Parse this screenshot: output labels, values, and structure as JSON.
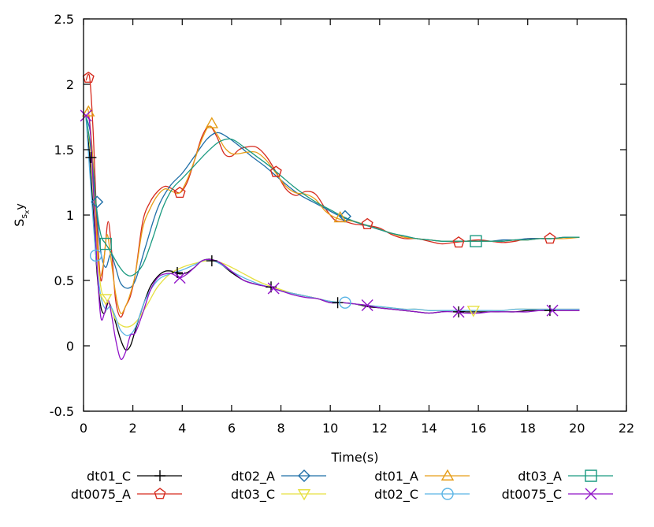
{
  "chart_data": {
    "type": "line",
    "title": "",
    "xlabel": "Time(s)",
    "ylabel": {
      "main": "S",
      "sub": "s",
      "subsub": "x",
      "tail": "y"
    },
    "xlim": [
      0,
      22
    ],
    "ylim": [
      -0.5,
      2.5
    ],
    "xticks": [
      0,
      2,
      4,
      6,
      8,
      10,
      12,
      14,
      16,
      18,
      20,
      22
    ],
    "yticks": [
      -0.5,
      0,
      0.5,
      1,
      1.5,
      2,
      2.5
    ],
    "grid": false,
    "legend_position": "bottom",
    "series": [
      {
        "name": "dt01_C",
        "color": "#000000",
        "marker": "plus",
        "x": [
          0.1,
          0.25,
          0.4,
          0.55,
          0.7,
          0.85,
          1.0,
          1.15,
          1.3,
          1.5,
          1.7,
          1.9,
          2.1,
          2.4,
          2.7,
          3.0,
          3.3,
          3.6,
          3.9,
          4.2,
          4.5,
          4.8,
          5.2,
          5.6,
          6.0,
          6.5,
          7.0,
          7.5,
          8.0,
          8.5,
          9.0,
          9.5,
          10.0,
          10.5,
          11.0,
          11.5,
          12.0,
          12.5,
          13.0,
          13.5,
          14.0,
          14.5,
          15.0,
          15.5,
          16.0,
          16.5,
          17.0,
          17.5,
          18.0,
          18.5,
          19.0,
          19.5,
          20.1
        ],
        "y": [
          1.75,
          1.44,
          1.0,
          0.55,
          0.3,
          0.25,
          0.33,
          0.28,
          0.18,
          0.05,
          -0.03,
          0.0,
          0.12,
          0.3,
          0.45,
          0.53,
          0.57,
          0.57,
          0.55,
          0.56,
          0.6,
          0.65,
          0.66,
          0.62,
          0.56,
          0.5,
          0.47,
          0.45,
          0.42,
          0.4,
          0.38,
          0.36,
          0.33,
          0.33,
          0.32,
          0.3,
          0.29,
          0.28,
          0.27,
          0.26,
          0.25,
          0.26,
          0.27,
          0.26,
          0.26,
          0.26,
          0.26,
          0.26,
          0.27,
          0.27,
          0.27,
          0.27,
          0.27
        ],
        "marker_x": [
          0.3,
          3.8,
          5.2,
          7.6,
          10.3,
          15.2,
          18.9
        ],
        "marker_y": [
          1.44,
          0.56,
          0.65,
          0.45,
          0.33,
          0.26,
          0.27
        ]
      },
      {
        "name": "dt0075_A",
        "color": "#d62b1e",
        "marker": "pentagon",
        "x": [
          0.1,
          0.25,
          0.4,
          0.55,
          0.7,
          0.85,
          1.0,
          1.15,
          1.3,
          1.5,
          1.7,
          1.9,
          2.1,
          2.4,
          2.7,
          3.0,
          3.3,
          3.6,
          3.9,
          4.2,
          4.5,
          4.8,
          5.1,
          5.4,
          5.7,
          6.0,
          6.3,
          6.6,
          7.0,
          7.4,
          7.8,
          8.2,
          8.6,
          9.0,
          9.4,
          9.8,
          10.2,
          10.6,
          11.0,
          11.5,
          12.0,
          12.5,
          13.0,
          13.5,
          14.0,
          14.5,
          15.0,
          15.5,
          16.0,
          16.5,
          17.0,
          17.5,
          18.0,
          18.5,
          19.0,
          19.5,
          20.1
        ],
        "y": [
          2.03,
          2.05,
          1.6,
          0.9,
          0.5,
          0.7,
          0.95,
          0.7,
          0.35,
          0.22,
          0.3,
          0.38,
          0.55,
          0.95,
          1.1,
          1.18,
          1.22,
          1.2,
          1.17,
          1.25,
          1.42,
          1.6,
          1.68,
          1.6,
          1.47,
          1.45,
          1.5,
          1.52,
          1.52,
          1.45,
          1.33,
          1.2,
          1.15,
          1.18,
          1.16,
          1.05,
          0.96,
          0.95,
          0.93,
          0.92,
          0.9,
          0.85,
          0.82,
          0.82,
          0.8,
          0.78,
          0.79,
          0.8,
          0.81,
          0.8,
          0.79,
          0.8,
          0.82,
          0.82,
          0.82,
          0.83,
          0.83
        ],
        "marker_x": [
          0.2,
          3.9,
          7.8,
          11.5,
          15.2,
          18.9
        ],
        "marker_y": [
          2.05,
          1.17,
          1.33,
          0.93,
          0.79,
          0.82
        ]
      },
      {
        "name": "dt02_A",
        "color": "#1f6fa8",
        "marker": "diamond",
        "x": [
          0.1,
          0.3,
          0.5,
          0.7,
          0.9,
          1.1,
          1.3,
          1.5,
          1.8,
          2.1,
          2.5,
          3.0,
          3.5,
          4.0,
          4.5,
          5.0,
          5.4,
          5.8,
          6.3,
          6.8,
          7.3,
          7.8,
          8.3,
          8.8,
          9.3,
          9.8,
          10.3,
          10.8,
          11.3,
          11.8,
          12.5,
          13.0,
          13.5,
          14.0,
          14.5,
          15.0,
          15.5,
          16.0,
          16.5,
          17.0,
          17.5,
          18.0,
          18.5,
          19.0,
          19.5,
          20.1
        ],
        "y": [
          1.75,
          1.6,
          1.1,
          0.72,
          0.6,
          0.7,
          0.6,
          0.48,
          0.44,
          0.5,
          0.75,
          1.05,
          1.22,
          1.32,
          1.45,
          1.58,
          1.63,
          1.6,
          1.53,
          1.45,
          1.38,
          1.3,
          1.22,
          1.15,
          1.1,
          1.05,
          1.0,
          0.96,
          0.93,
          0.9,
          0.86,
          0.84,
          0.82,
          0.81,
          0.8,
          0.8,
          0.8,
          0.8,
          0.8,
          0.81,
          0.81,
          0.82,
          0.82,
          0.82,
          0.83,
          0.83
        ],
        "marker_x": [
          0.55,
          10.6
        ],
        "marker_y": [
          1.1,
          0.99
        ]
      },
      {
        "name": "dt03_C",
        "color": "#e6e040",
        "marker": "triangle-down",
        "x": [
          0.1,
          0.3,
          0.5,
          0.7,
          0.9,
          1.1,
          1.3,
          1.6,
          1.9,
          2.2,
          2.6,
          3.0,
          3.5,
          4.0,
          4.5,
          5.0,
          5.5,
          6.0,
          6.5,
          7.0,
          7.5,
          8.0,
          8.5,
          9.0,
          9.5,
          10.0,
          10.5,
          11.0,
          11.5,
          12.0,
          12.5,
          13.0,
          13.5,
          14.0,
          14.5,
          15.0,
          15.5,
          16.0,
          16.5,
          17.0,
          17.5,
          18.0,
          18.5,
          19.0,
          19.5,
          20.1
        ],
        "y": [
          1.75,
          1.45,
          0.85,
          0.45,
          0.36,
          0.3,
          0.2,
          0.15,
          0.15,
          0.2,
          0.32,
          0.45,
          0.55,
          0.6,
          0.63,
          0.65,
          0.64,
          0.6,
          0.55,
          0.5,
          0.46,
          0.43,
          0.4,
          0.38,
          0.36,
          0.34,
          0.33,
          0.32,
          0.31,
          0.3,
          0.29,
          0.28,
          0.28,
          0.27,
          0.27,
          0.27,
          0.27,
          0.27,
          0.27,
          0.27,
          0.28,
          0.28,
          0.28,
          0.28,
          0.28,
          0.28
        ],
        "marker_x": [
          0.9,
          15.8
        ],
        "marker_y": [
          0.36,
          0.27
        ]
      },
      {
        "name": "dt01_A",
        "color": "#e69d17",
        "marker": "triangle",
        "x": [
          0.1,
          0.2,
          0.35,
          0.5,
          0.65,
          0.8,
          0.95,
          1.1,
          1.3,
          1.5,
          1.7,
          1.9,
          2.1,
          2.4,
          2.7,
          3.0,
          3.3,
          3.6,
          3.9,
          4.2,
          4.5,
          4.8,
          5.1,
          5.4,
          5.7,
          6.0,
          6.3,
          6.6,
          7.0,
          7.4,
          7.8,
          8.2,
          8.6,
          9.0,
          9.4,
          9.8,
          10.2,
          10.6,
          11.0,
          11.5,
          12.0,
          12.5,
          13.0,
          13.5,
          14.0,
          14.5,
          15.0,
          15.5,
          16.0,
          16.5,
          17.0,
          17.5,
          18.0,
          18.5,
          19.0,
          19.5,
          20.1
        ],
        "y": [
          1.8,
          1.79,
          1.5,
          0.95,
          0.55,
          0.62,
          0.85,
          0.68,
          0.4,
          0.25,
          0.3,
          0.4,
          0.55,
          0.9,
          1.05,
          1.15,
          1.2,
          1.18,
          1.17,
          1.27,
          1.42,
          1.58,
          1.68,
          1.62,
          1.52,
          1.47,
          1.47,
          1.48,
          1.48,
          1.42,
          1.32,
          1.22,
          1.17,
          1.16,
          1.12,
          1.03,
          0.98,
          0.96,
          0.95,
          0.92,
          0.89,
          0.86,
          0.83,
          0.82,
          0.81,
          0.8,
          0.8,
          0.8,
          0.8,
          0.8,
          0.8,
          0.81,
          0.81,
          0.82,
          0.82,
          0.82,
          0.83
        ],
        "marker_x": [
          0.2,
          5.2,
          10.4
        ],
        "marker_y": [
          1.79,
          1.7,
          0.98
        ]
      },
      {
        "name": "dt02_C",
        "color": "#5ab4e5",
        "marker": "circle",
        "x": [
          0.1,
          0.3,
          0.5,
          0.7,
          0.9,
          1.1,
          1.3,
          1.5,
          1.8,
          2.1,
          2.5,
          3.0,
          3.5,
          4.0,
          4.5,
          5.0,
          5.5,
          6.0,
          6.5,
          7.0,
          7.5,
          8.0,
          8.5,
          9.0,
          9.5,
          10.0,
          10.5,
          11.0,
          11.5,
          12.0,
          12.5,
          13.0,
          13.5,
          14.0,
          14.5,
          15.0,
          15.5,
          16.0,
          16.5,
          17.0,
          17.5,
          18.0,
          18.5,
          19.0,
          19.5,
          20.1
        ],
        "y": [
          1.75,
          1.2,
          0.69,
          0.38,
          0.28,
          0.3,
          0.22,
          0.12,
          0.08,
          0.14,
          0.35,
          0.5,
          0.55,
          0.58,
          0.62,
          0.66,
          0.63,
          0.57,
          0.52,
          0.48,
          0.45,
          0.42,
          0.4,
          0.38,
          0.36,
          0.34,
          0.33,
          0.32,
          0.31,
          0.3,
          0.29,
          0.28,
          0.28,
          0.27,
          0.27,
          0.27,
          0.27,
          0.27,
          0.27,
          0.27,
          0.28,
          0.28,
          0.28,
          0.28,
          0.28,
          0.28
        ],
        "marker_x": [
          0.5,
          10.6
        ],
        "marker_y": [
          0.69,
          0.33
        ]
      },
      {
        "name": "dt03_A",
        "color": "#1a9a80",
        "marker": "square",
        "x": [
          0.1,
          0.3,
          0.5,
          0.7,
          0.9,
          1.1,
          1.4,
          1.7,
          2.0,
          2.4,
          2.8,
          3.2,
          3.6,
          4.0,
          4.5,
          5.0,
          5.5,
          6.0,
          6.5,
          7.0,
          7.5,
          8.0,
          8.5,
          9.0,
          9.5,
          10.0,
          10.5,
          11.0,
          11.5,
          12.0,
          12.5,
          13.0,
          13.5,
          14.0,
          14.5,
          15.0,
          15.5,
          16.0,
          16.5,
          17.0,
          17.5,
          18.0,
          18.5,
          19.0,
          19.5,
          20.1
        ],
        "y": [
          1.75,
          1.5,
          1.1,
          0.85,
          0.78,
          0.72,
          0.62,
          0.55,
          0.54,
          0.62,
          0.82,
          1.05,
          1.2,
          1.28,
          1.38,
          1.48,
          1.56,
          1.58,
          1.52,
          1.45,
          1.38,
          1.3,
          1.22,
          1.15,
          1.09,
          1.04,
          0.99,
          0.95,
          0.92,
          0.89,
          0.86,
          0.84,
          0.82,
          0.81,
          0.8,
          0.8,
          0.8,
          0.8,
          0.8,
          0.8,
          0.81,
          0.81,
          0.82,
          0.82,
          0.83,
          0.83
        ],
        "marker_x": [
          0.9,
          15.9
        ],
        "marker_y": [
          0.78,
          0.8
        ]
      },
      {
        "name": "dt0075_C",
        "color": "#9013c8",
        "marker": "cross",
        "x": [
          0.1,
          0.25,
          0.4,
          0.55,
          0.7,
          0.85,
          1.0,
          1.15,
          1.3,
          1.5,
          1.7,
          1.9,
          2.1,
          2.4,
          2.7,
          3.0,
          3.3,
          3.6,
          3.9,
          4.2,
          4.5,
          4.8,
          5.1,
          5.5,
          6.0,
          6.5,
          7.0,
          7.5,
          8.0,
          8.5,
          9.0,
          9.5,
          10.0,
          10.5,
          11.0,
          11.5,
          12.0,
          12.5,
          13.0,
          13.5,
          14.0,
          14.5,
          15.0,
          15.5,
          16.0,
          16.5,
          17.0,
          17.5,
          18.0,
          18.5,
          19.0,
          19.5,
          20.1
        ],
        "y": [
          1.76,
          1.7,
          1.2,
          0.6,
          0.22,
          0.25,
          0.35,
          0.22,
          0.05,
          -0.1,
          -0.05,
          0.08,
          0.1,
          0.25,
          0.42,
          0.52,
          0.55,
          0.55,
          0.52,
          0.55,
          0.6,
          0.65,
          0.66,
          0.64,
          0.57,
          0.5,
          0.47,
          0.45,
          0.42,
          0.39,
          0.37,
          0.36,
          0.33,
          0.33,
          0.32,
          0.31,
          0.29,
          0.28,
          0.27,
          0.26,
          0.25,
          0.26,
          0.26,
          0.25,
          0.25,
          0.26,
          0.26,
          0.26,
          0.26,
          0.27,
          0.27,
          0.27,
          0.27
        ],
        "marker_x": [
          0.1,
          3.9,
          7.7,
          11.5,
          15.2,
          19.0
        ],
        "marker_y": [
          1.76,
          0.52,
          0.44,
          0.31,
          0.26,
          0.27
        ]
      }
    ]
  }
}
